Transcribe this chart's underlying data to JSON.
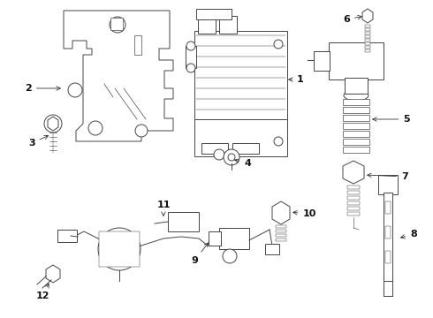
{
  "bg_color": "#ffffff",
  "lc": "#444444",
  "lw": 0.7,
  "figsize": [
    4.9,
    3.6
  ],
  "dpi": 100
}
